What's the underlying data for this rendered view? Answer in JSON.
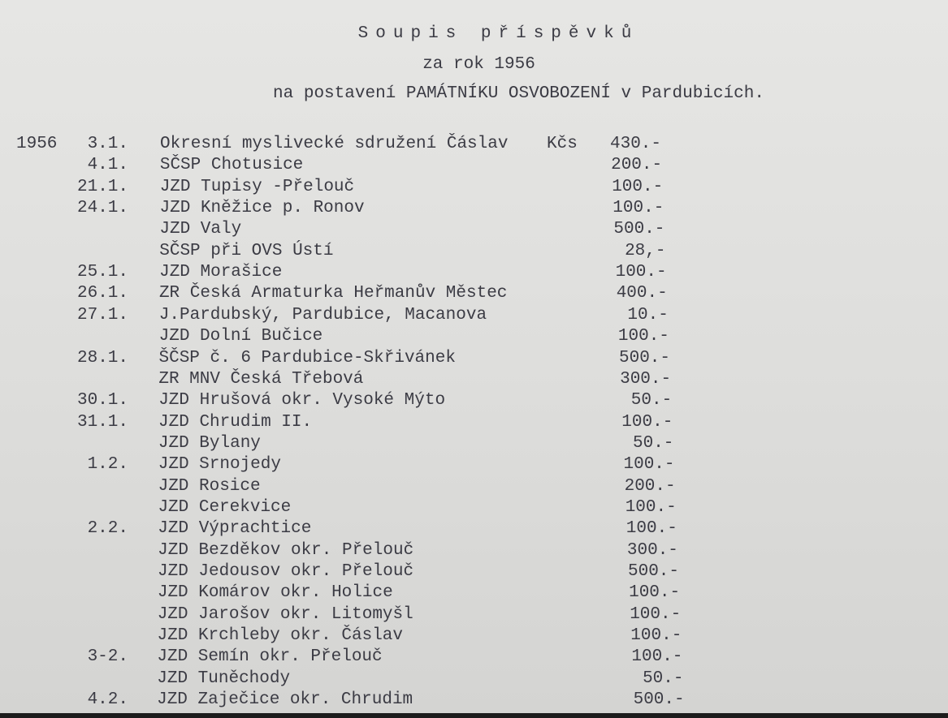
{
  "header": {
    "title": "Soupis příspěvků",
    "subtitle": "za rok 1956",
    "purpose": "na postavení PAMÁTNÍKU OSVOBOZENÍ v Pardubicích."
  },
  "table": {
    "rows": [
      {
        "year": "1956",
        "date": "3.1.",
        "name": "Okresní myslivecké sdružení Čáslav",
        "currency": "Kčs",
        "amount": "430.-"
      },
      {
        "date": "4.1.",
        "name": "SČSP Chotusice",
        "amount": "200.-"
      },
      {
        "date": "21.1.",
        "name": "JZD Tupisy -Přelouč",
        "amount": "100.-"
      },
      {
        "date": "24.1.",
        "name": "JZD Kněžice p. Ronov",
        "amount": "100.-"
      },
      {
        "name": "JZD Valy",
        "amount": "500.-"
      },
      {
        "name": "SČSP při OVS Ústí",
        "amount": "28,-"
      },
      {
        "date": "25.1.",
        "name": "JZD Morašice",
        "amount": "100.-"
      },
      {
        "date": "26.1.",
        "name": "ZR Česká Armaturka Heřmanův Městec",
        "amount": "400.-"
      },
      {
        "date": "27.1.",
        "name": "J.Pardubský, Pardubice, Macanova",
        "amount": "10.-"
      },
      {
        "name": "JZD Dolní Bučice",
        "amount": "100.-"
      },
      {
        "date": "28.1.",
        "name": "ŠČSP č. 6 Pardubice-Skřivánek",
        "amount": "500.-"
      },
      {
        "name": "ZR MNV Česká Třebová",
        "amount": "300.-"
      },
      {
        "date": "30.1.",
        "name": "JZD Hrušová okr. Vysoké Mýto",
        "amount": "50.-"
      },
      {
        "date": "31.1.",
        "name": "JZD Chrudim II.",
        "amount": "100.-"
      },
      {
        "name": "JZD Bylany",
        "amount": "50.-"
      },
      {
        "date": "1.2.",
        "name": "JZD Srnojedy",
        "amount": "100.-"
      },
      {
        "name": "JZD Rosice",
        "amount": "200.-"
      },
      {
        "name": "JZD Cerekvice",
        "amount": "100.-"
      },
      {
        "date": "2.2.",
        "name": "JZD Výprachtice",
        "amount": "100.-"
      },
      {
        "name": "JZD Bezděkov okr. Přelouč",
        "amount": "300.-"
      },
      {
        "name": "JZD Jedousov okr. Přelouč",
        "amount": "500.-"
      },
      {
        "name": "JZD Komárov okr. Holice",
        "amount": "100.-"
      },
      {
        "name": "JZD Jarošov okr. Litomyšl",
        "amount": "100.-"
      },
      {
        "name": "JZD Krchleby okr. Čáslav",
        "amount": "100.-"
      },
      {
        "date": "3-2.",
        "name": "JZD Semín okr. Přelouč",
        "amount": "100.-"
      },
      {
        "name": "JZD Tuněchody",
        "amount": "50.-"
      },
      {
        "date": "4.2.",
        "name": "JZD Zaječice okr. Chrudim",
        "amount": "500.-"
      }
    ]
  }
}
